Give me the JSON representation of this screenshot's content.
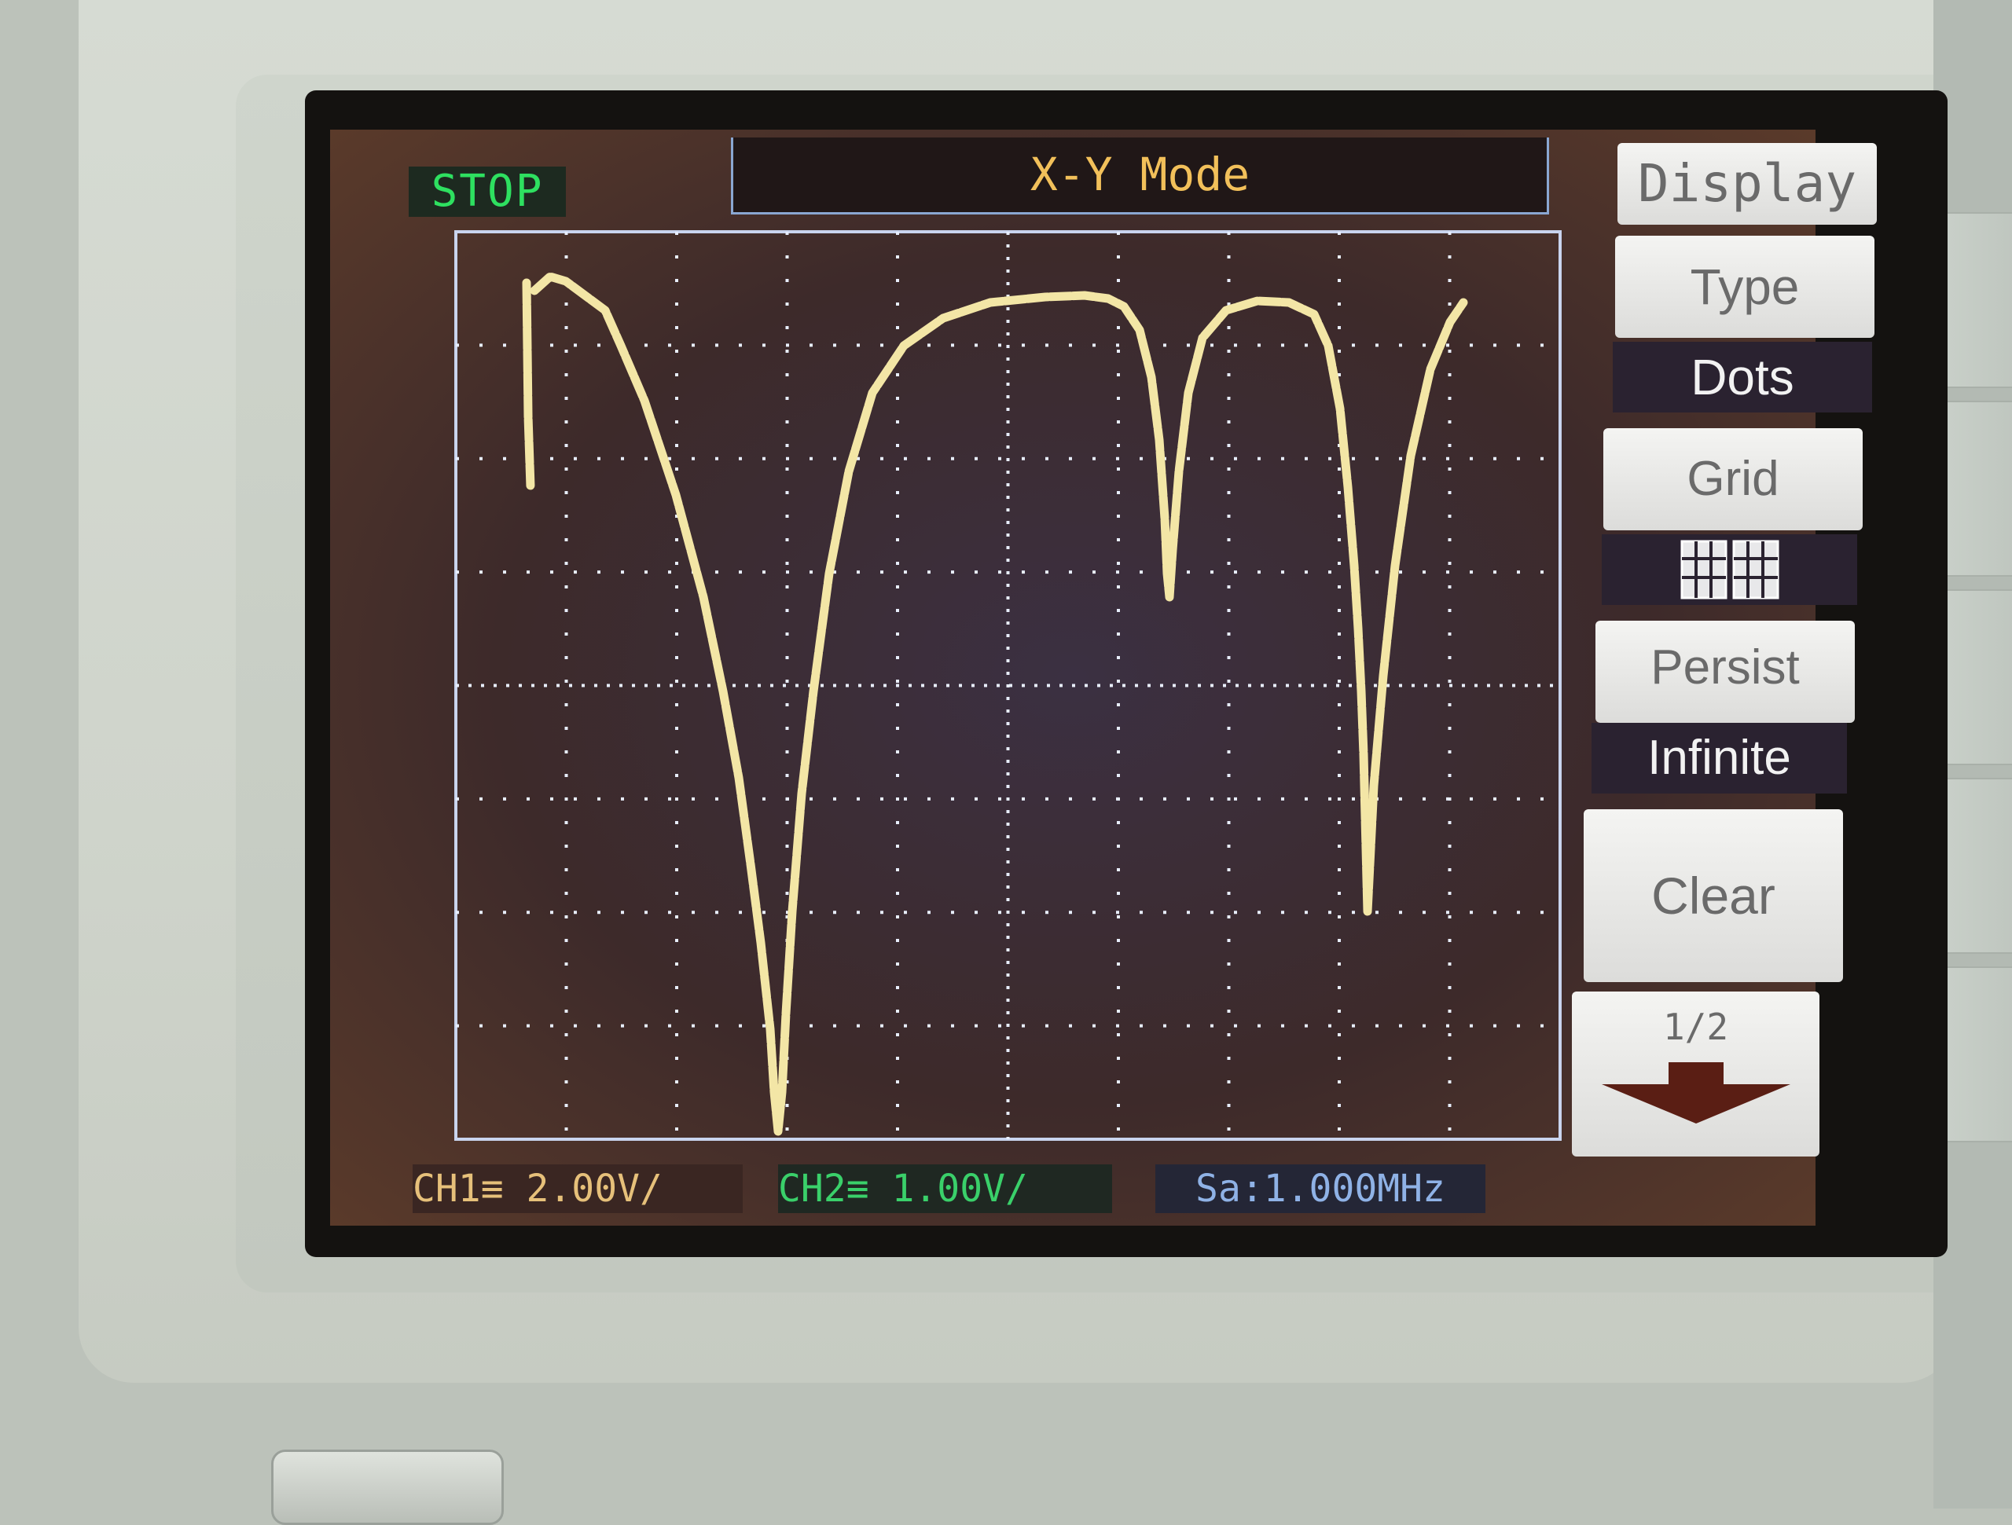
{
  "status": {
    "run_state": "STOP"
  },
  "header": {
    "mode_title": "X-Y Mode"
  },
  "menu": {
    "title": "Display",
    "type_label": "Type",
    "type_value": "Dots",
    "grid_label": "Grid",
    "grid_value_icon": "full-grid-icon",
    "persist_label": "Persist",
    "persist_value": "Infinite",
    "clear_label": "Clear",
    "page_indicator": "1/2",
    "next_page_icon": "down-arrow-icon"
  },
  "footer": {
    "ch1": "CH1≡  2.00V/",
    "ch2": "CH2≡  1.00V/",
    "sample_rate": "Sa:1.000MHz"
  },
  "colors": {
    "trace": "#f3e6a6",
    "ch1": "#e6c07a",
    "ch2": "#3ad06a",
    "sa": "#8fb2e6",
    "stop": "#2ee060",
    "title_text": "#f2c05a"
  }
}
